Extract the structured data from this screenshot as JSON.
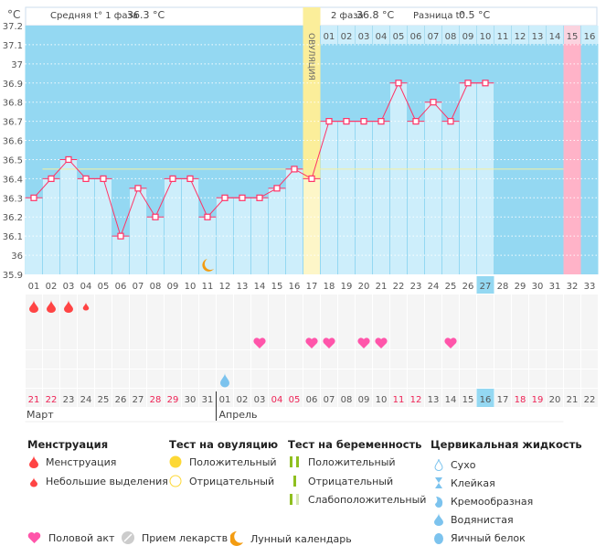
{
  "header": {
    "unit": "°C",
    "phase1_label": "Средняя t° 1 фаза",
    "phase1_value": "36.3 °C",
    "phase2_label": "2 фаза",
    "phase2_value": "36.8 °C",
    "diff_label": "Разница t°",
    "diff_value": "0.5 °C",
    "ovulation_label": "ОВУЛЯЦИЯ"
  },
  "chart_data": {
    "type": "bar",
    "ylim": [
      35.9,
      37.2
    ],
    "yticks": [
      "37.2",
      "37.1",
      "37",
      "36.9",
      "36.8",
      "36.7",
      "36.6",
      "36.5",
      "36.4",
      "36.3",
      "36.2",
      "36.1",
      "36",
      "35.9"
    ],
    "grid": true,
    "cycle_days": [
      "01",
      "02",
      "03",
      "04",
      "05",
      "06",
      "07",
      "08",
      "09",
      "10",
      "11",
      "12",
      "13",
      "14",
      "15",
      "16",
      "17",
      "18",
      "19",
      "20",
      "21",
      "22",
      "23",
      "24",
      "25",
      "26",
      "27",
      "28",
      "29",
      "30",
      "31",
      "32",
      "33"
    ],
    "temperatures": [
      36.3,
      36.4,
      36.5,
      36.4,
      36.4,
      36.1,
      36.35,
      36.2,
      36.4,
      36.4,
      36.2,
      36.3,
      36.3,
      36.3,
      36.35,
      36.45,
      36.4,
      36.7,
      36.7,
      36.7,
      36.7,
      36.9,
      36.7,
      36.8,
      36.7,
      36.9,
      36.9
    ],
    "coverline": 36.45,
    "ovulation_day": 17,
    "expected_period_day": 32,
    "current_day": 27,
    "phase2_days": [
      "01",
      "02",
      "03",
      "04",
      "05",
      "06",
      "07",
      "08",
      "09",
      "10",
      "11",
      "12",
      "13",
      "14",
      "15",
      "16"
    ],
    "dates": [
      "21",
      "22",
      "23",
      "24",
      "25",
      "26",
      "27",
      "28",
      "29",
      "30",
      "31",
      "01",
      "02",
      "03",
      "04",
      "05",
      "06",
      "07",
      "08",
      "09",
      "10",
      "11",
      "12",
      "13",
      "14",
      "15",
      "16",
      "17",
      "18",
      "19",
      "20",
      "21",
      "22"
    ],
    "weekend_dates_idx": [
      0,
      1,
      7,
      8,
      14,
      15,
      21,
      22,
      28,
      29
    ],
    "months": [
      "Март",
      "Апрель"
    ],
    "menstruation": {
      "1": "heavy",
      "2": "heavy",
      "3": "heavy",
      "4": "light"
    },
    "intercourse_days": [
      14,
      17,
      18,
      20,
      21,
      25
    ],
    "cervical": {
      "12": "watery"
    },
    "lunar_day": 11,
    "colors": {
      "bg": "#94d8f2",
      "bar": "#cdeefb",
      "line": "#ff3366",
      "ovulation": "#fbee9a",
      "period": "#ffb3c8",
      "coverline": "#f5f0a0",
      "weekend": "#ee2255"
    }
  },
  "legend": {
    "menstruation": {
      "title": "Менструация",
      "items": [
        "Менструация",
        "Небольшие выделения"
      ]
    },
    "ovulation_test": {
      "title": "Тест на овуляцию",
      "items": [
        "Положительный",
        "Отрицательный"
      ]
    },
    "pregnancy_test": {
      "title": "Тест на беременность",
      "items": [
        "Положительный",
        "Отрицательный",
        "Слабоположительный"
      ]
    },
    "cervical": {
      "title": "Цервикальная жидкость",
      "items": [
        "Сухо",
        "Клейкая",
        "Кремообразная",
        "Водянистая",
        "Яичный белок"
      ]
    },
    "other": [
      "Половой акт",
      "Прием лекарств",
      "Лунный календарь"
    ]
  }
}
